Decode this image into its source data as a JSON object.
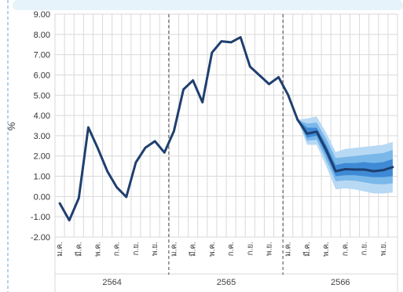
{
  "chart_data": {
    "type": "line",
    "ylabel": "%",
    "ylim": [
      -2,
      9
    ],
    "yticks": [
      "-2.00",
      "-1.00",
      "0.00",
      "1.00",
      "2.00",
      "3.00",
      "4.00",
      "5.00",
      "6.00",
      "7.00",
      "8.00",
      "9.00"
    ],
    "xtick_labels": [
      "ม.ค.",
      "มี.ค.",
      "พ.ค.",
      "ก.ค.",
      "ก.ย.",
      "พ.ย.",
      "ม.ค.",
      "มี.ค.",
      "พ.ค.",
      "ก.ค.",
      "ก.ย.",
      "พ.ย.",
      "ม.ค.",
      "มี.ค.",
      "พ.ค.",
      "ก.ค.",
      "ก.ย.",
      "พ.ย."
    ],
    "groups": [
      "2564",
      "2565",
      "2566"
    ],
    "grid": true,
    "colors": {
      "line": "#1f3f6e",
      "fan_outer": "#b8d9f4",
      "fan_mid": "#7ab8ea",
      "fan_inner": "#3f8ad6",
      "forecast": "#1f3f6e",
      "grid": "#d9d9d9",
      "divider": "#666666",
      "frame": "#6aa0d8",
      "banner": "#e6f3fa"
    },
    "series": [
      {
        "values": [
          -0.34,
          -1.17,
          -0.08,
          3.41,
          2.38,
          1.25,
          0.45,
          -0.02,
          1.68,
          2.41,
          2.73,
          2.17,
          3.23,
          5.28,
          5.73,
          4.65,
          7.1,
          7.66,
          7.61,
          7.86,
          6.41,
          5.98,
          5.55,
          5.89,
          5.02,
          3.79
        ]
      }
    ],
    "forecast": {
      "start_index": 25,
      "center": [
        3.79,
        3.1,
        3.2,
        2.3,
        1.25,
        1.35,
        1.33,
        1.33,
        1.25,
        1.3,
        1.45
      ],
      "inner": [
        [
          3.79,
          3.79
        ],
        [
          2.9,
          3.4
        ],
        [
          3.0,
          3.4
        ],
        [
          2.05,
          2.55
        ],
        [
          1.0,
          1.55
        ],
        [
          1.05,
          1.65
        ],
        [
          1.05,
          1.65
        ],
        [
          1.0,
          1.7
        ],
        [
          0.95,
          1.65
        ],
        [
          0.95,
          1.7
        ],
        [
          1.0,
          1.85
        ]
      ],
      "mid": [
        [
          3.79,
          3.79
        ],
        [
          2.75,
          3.6
        ],
        [
          2.8,
          3.65
        ],
        [
          1.8,
          2.85
        ],
        [
          0.75,
          1.9
        ],
        [
          0.8,
          1.95
        ],
        [
          0.78,
          2.0
        ],
        [
          0.7,
          2.05
        ],
        [
          0.62,
          2.1
        ],
        [
          0.6,
          2.15
        ],
        [
          0.65,
          2.3
        ]
      ],
      "outer": [
        [
          3.79,
          3.79
        ],
        [
          2.55,
          3.85
        ],
        [
          2.55,
          3.95
        ],
        [
          1.5,
          3.15
        ],
        [
          0.35,
          2.2
        ],
        [
          0.4,
          2.35
        ],
        [
          0.35,
          2.4
        ],
        [
          0.25,
          2.45
        ],
        [
          0.15,
          2.5
        ],
        [
          0.15,
          2.55
        ],
        [
          0.2,
          2.7
        ]
      ]
    }
  }
}
